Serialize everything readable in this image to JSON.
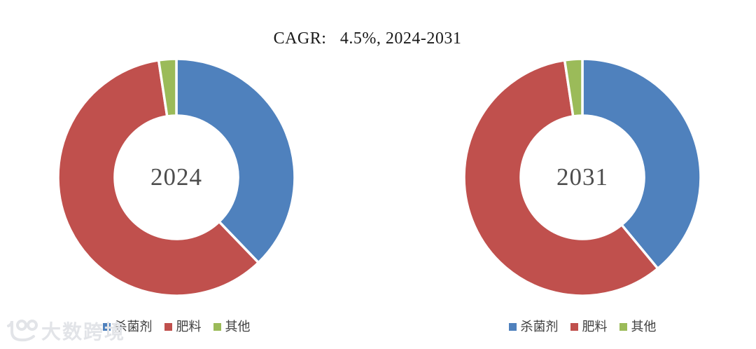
{
  "title": "CAGR:   4.5%, 2024-2031",
  "legend": {
    "items": [
      {
        "label": "杀菌剂",
        "color": "#4f81bd"
      },
      {
        "label": "肥料",
        "color": "#c0504d"
      },
      {
        "label": "其他",
        "color": "#9bbb59"
      }
    ]
  },
  "watermark": {
    "text": "大数跨境",
    "logo": "100-logo",
    "color": "#e2e4e8"
  },
  "colors": {
    "fungicide_blue": "#4f81bd",
    "fertilizer_red": "#c0504d",
    "other_green": "#9bbb59",
    "background": "#ffffff"
  },
  "chart_data": [
    {
      "type": "pie",
      "subtype": "donut",
      "title": "CAGR:   4.5%, 2024-2031",
      "center_label": "2024",
      "categories": [
        "杀菌剂",
        "肥料",
        "其他"
      ],
      "ids": [
        "fungicide",
        "fertilizer",
        "other"
      ],
      "values": [
        37.8,
        59.8,
        2.4
      ],
      "unit": "percent",
      "colors": [
        "#4f81bd",
        "#c0504d",
        "#9bbb59"
      ],
      "start_angle_deg": 0,
      "clockwise": true,
      "legend_position": "bottom"
    },
    {
      "type": "pie",
      "subtype": "donut",
      "center_label": "2031",
      "categories": [
        "杀菌剂",
        "肥料",
        "其他"
      ],
      "ids": [
        "fungicide",
        "fertilizer",
        "other"
      ],
      "values": [
        39.0,
        58.6,
        2.4
      ],
      "unit": "percent",
      "colors": [
        "#4f81bd",
        "#c0504d",
        "#9bbb59"
      ],
      "start_angle_deg": 0,
      "clockwise": true,
      "legend_position": "bottom"
    }
  ]
}
